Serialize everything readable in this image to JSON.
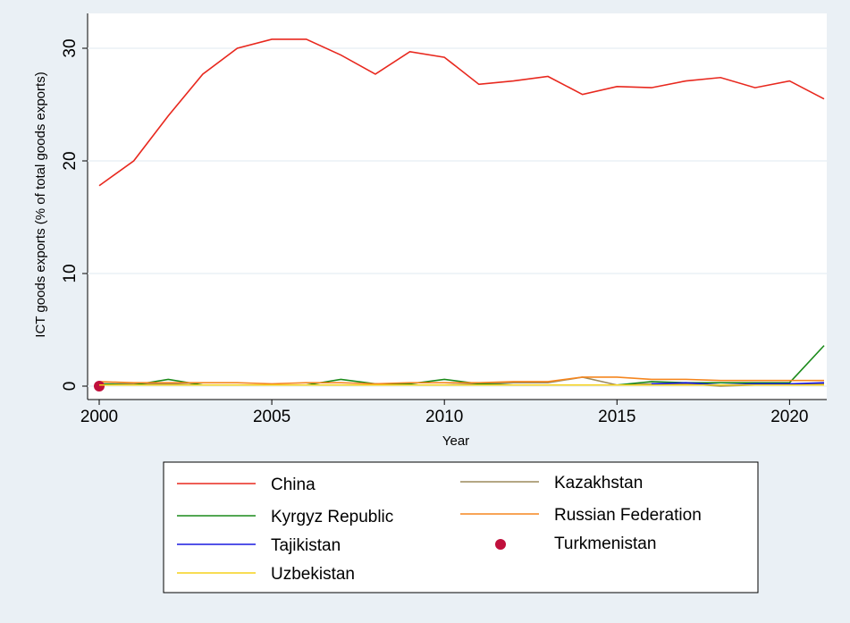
{
  "chart_data": {
    "type": "line",
    "x_label": "Year",
    "y_label": "ICT goods exports (% of total goods exports)",
    "x": [
      2000,
      2001,
      2002,
      2003,
      2004,
      2005,
      2006,
      2007,
      2008,
      2009,
      2010,
      2011,
      2012,
      2013,
      2014,
      2015,
      2016,
      2017,
      2018,
      2019,
      2020,
      2021
    ],
    "xlim": [
      2000,
      2021
    ],
    "ylim": [
      0,
      31
    ],
    "xticks": [
      2000,
      2005,
      2010,
      2015,
      2020
    ],
    "yticks": [
      0,
      10,
      20,
      30
    ],
    "grid": true,
    "legend": "bottom",
    "series": [
      {
        "name": "China",
        "color": "#e8281e",
        "values": [
          17.8,
          20.0,
          24.0,
          27.7,
          30.0,
          30.8,
          30.8,
          29.4,
          27.7,
          29.7,
          29.2,
          26.8,
          27.1,
          27.5,
          25.9,
          26.6,
          26.5,
          27.1,
          27.4,
          26.5,
          27.1,
          25.5
        ]
      },
      {
        "name": "Kazakhstan",
        "color": "#9c8a5c",
        "values": [
          0.2,
          0.2,
          0.2,
          0.1,
          0.1,
          0.1,
          0.1,
          0.1,
          0.1,
          0.1,
          0.1,
          0.2,
          0.3,
          0.3,
          0.8,
          0.1,
          0.2,
          0.2,
          0.0,
          0.1,
          0.1,
          0.2
        ]
      },
      {
        "name": "Kyrgyz Republic",
        "color": "#1a8a1a",
        "values": [
          0.2,
          0.1,
          0.6,
          0.1,
          0.1,
          0.1,
          0.1,
          0.6,
          0.2,
          0.2,
          0.6,
          0.2,
          0.1,
          0.1,
          0.1,
          0.1,
          0.4,
          0.3,
          0.3,
          0.3,
          0.3,
          3.6
        ]
      },
      {
        "name": "Russian Federation",
        "color": "#f5861f",
        "values": [
          0.4,
          0.3,
          0.3,
          0.3,
          0.3,
          0.2,
          0.3,
          0.3,
          0.2,
          0.3,
          0.3,
          0.3,
          0.4,
          0.4,
          0.8,
          0.8,
          0.6,
          0.6,
          0.5,
          0.5,
          0.5,
          0.5
        ]
      },
      {
        "name": "Tajikistan",
        "color": "#1a1ae0",
        "values": [
          null,
          null,
          null,
          null,
          null,
          null,
          null,
          null,
          null,
          null,
          null,
          null,
          null,
          null,
          null,
          null,
          0.2,
          0.3,
          0.1,
          0.2,
          0.2,
          0.3
        ]
      },
      {
        "name": "Turkmenistan",
        "color": "#c0103c",
        "marker": true,
        "values": [
          0.0,
          null,
          null,
          null,
          null,
          null,
          null,
          null,
          null,
          null,
          null,
          null,
          null,
          null,
          null,
          null,
          null,
          null,
          null,
          null,
          null,
          null
        ]
      },
      {
        "name": "Uzbekistan",
        "color": "#f5d21a",
        "values": [
          0.1,
          0.1,
          0.1,
          0.1,
          0.1,
          0.1,
          0.1,
          0.1,
          0.1,
          0.1,
          0.1,
          0.1,
          0.1,
          0.1,
          0.1,
          0.1,
          0.1,
          0.1,
          0.1,
          0.1,
          0.1,
          0.1
        ]
      }
    ]
  }
}
